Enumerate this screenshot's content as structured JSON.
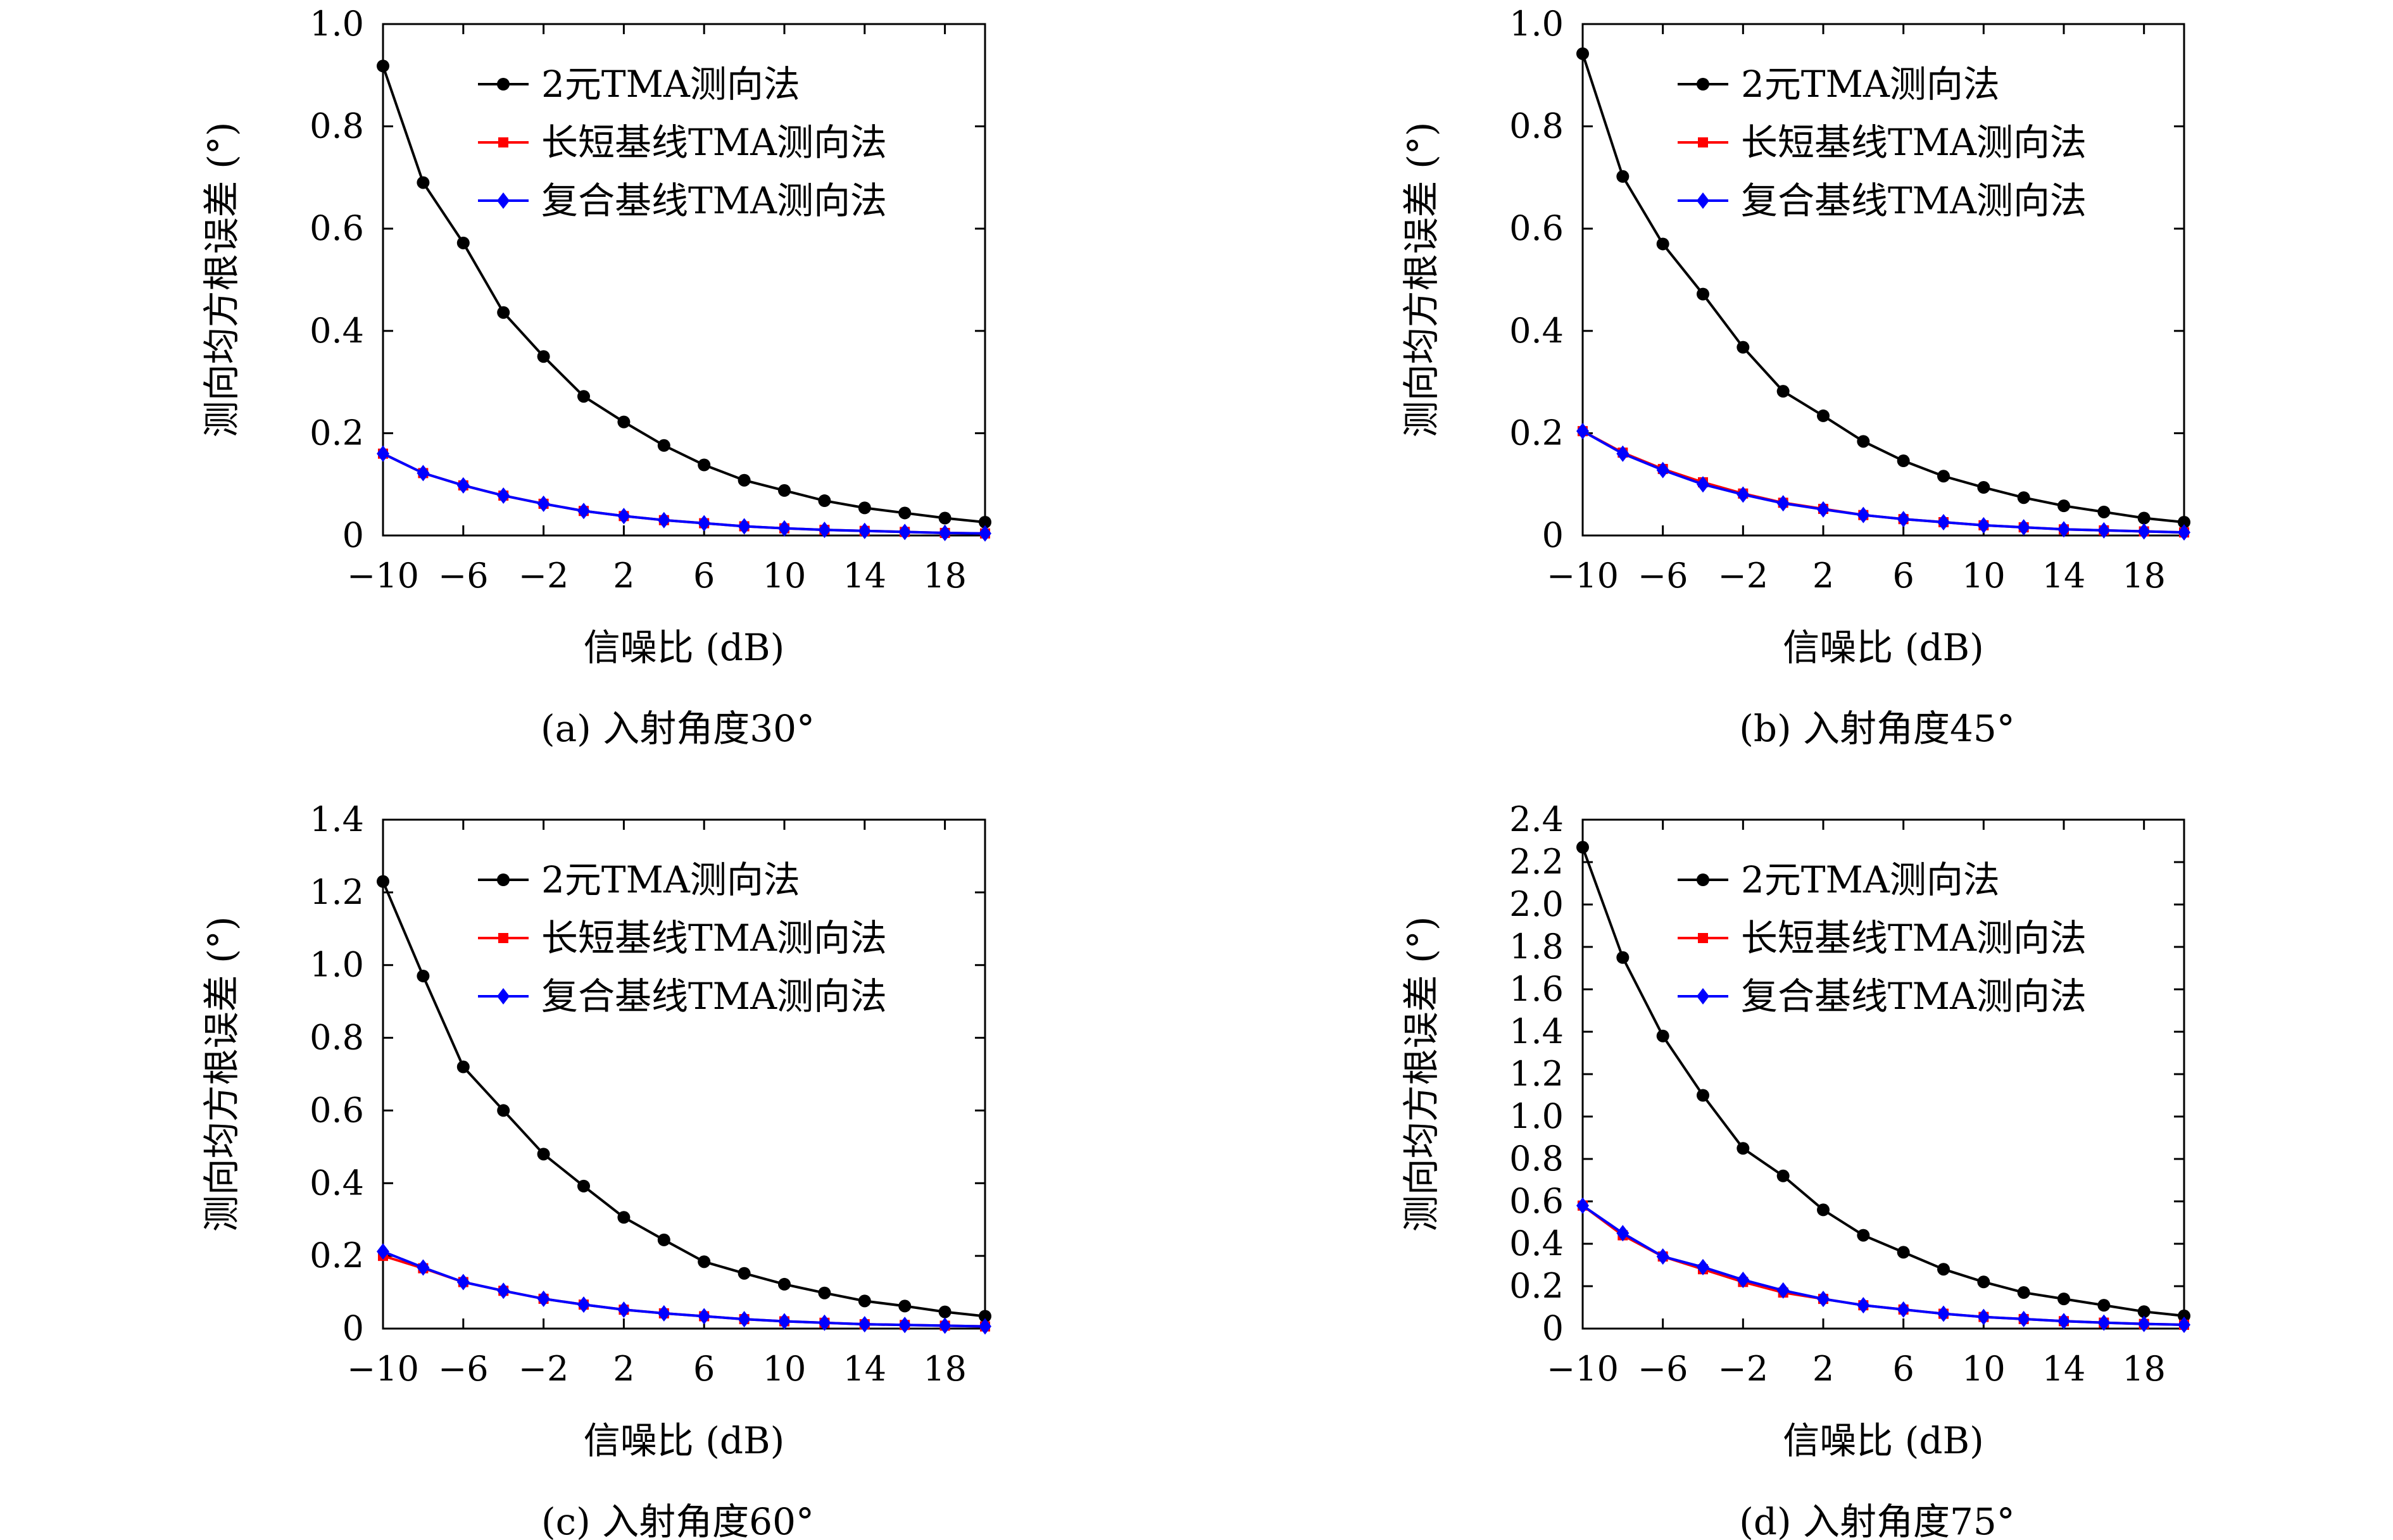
{
  "chart_data": [
    {
      "type": "line",
      "caption": "(a) 入射角度30°",
      "xlabel": "信噪比 (dB)",
      "ylabel": "测向均方根误差 (°)",
      "xlim": [
        -10,
        20
      ],
      "ylim": [
        0,
        1.0
      ],
      "xticks": [
        -10,
        -6,
        -2,
        2,
        6,
        10,
        14,
        18
      ],
      "xtick_labels": [
        "−10",
        "−6",
        "−2",
        "2",
        "6",
        "10",
        "14",
        "18"
      ],
      "yticks": [
        0,
        0.2,
        0.4,
        0.6,
        0.8,
        1.0
      ],
      "ytick_labels": [
        "0",
        "0.2",
        "0.4",
        "0.6",
        "0.8",
        "1.0"
      ],
      "legend_position": "top-right",
      "x": [
        -10,
        -8,
        -6,
        -4,
        -2,
        0,
        2,
        4,
        6,
        8,
        10,
        12,
        14,
        16,
        18,
        20
      ],
      "series": [
        {
          "name": "2元TMA测向法",
          "color": "#000000",
          "marker": "circle",
          "values": [
            0.918,
            0.69,
            0.572,
            0.436,
            0.35,
            0.272,
            0.222,
            0.176,
            0.138,
            0.108,
            0.088,
            0.068,
            0.054,
            0.044,
            0.034,
            0.026
          ]
        },
        {
          "name": "长短基线TMA测向法",
          "color": "#ff0000",
          "marker": "square",
          "values": [
            0.16,
            0.122,
            0.098,
            0.078,
            0.062,
            0.048,
            0.038,
            0.03,
            0.024,
            0.018,
            0.014,
            0.011,
            0.009,
            0.007,
            0.005,
            0.004
          ]
        },
        {
          "name": "复合基线TMA测向法",
          "color": "#0000ff",
          "marker": "diamond",
          "values": [
            0.16,
            0.122,
            0.098,
            0.078,
            0.062,
            0.048,
            0.038,
            0.03,
            0.024,
            0.018,
            0.014,
            0.011,
            0.009,
            0.007,
            0.005,
            0.004
          ]
        }
      ]
    },
    {
      "type": "line",
      "caption": "(b) 入射角度45°",
      "xlabel": "信噪比 (dB)",
      "ylabel": "测向均方根误差 (°)",
      "xlim": [
        -10,
        20
      ],
      "ylim": [
        0,
        1.0
      ],
      "xticks": [
        -10,
        -6,
        -2,
        2,
        6,
        10,
        14,
        18
      ],
      "xtick_labels": [
        "−10",
        "−6",
        "−2",
        "2",
        "6",
        "10",
        "14",
        "18"
      ],
      "yticks": [
        0,
        0.2,
        0.4,
        0.6,
        0.8,
        1.0
      ],
      "ytick_labels": [
        "0",
        "0.2",
        "0.4",
        "0.6",
        "0.8",
        "1.0"
      ],
      "legend_position": "top-right",
      "x": [
        -10,
        -8,
        -6,
        -4,
        -2,
        0,
        2,
        4,
        6,
        8,
        10,
        12,
        14,
        16,
        18,
        20
      ],
      "series": [
        {
          "name": "2元TMA测向法",
          "color": "#000000",
          "marker": "circle",
          "values": [
            0.942,
            0.702,
            0.57,
            0.472,
            0.368,
            0.282,
            0.234,
            0.184,
            0.146,
            0.116,
            0.094,
            0.074,
            0.058,
            0.046,
            0.034,
            0.026
          ]
        },
        {
          "name": "长短基线TMA测向法",
          "color": "#ff0000",
          "marker": "square",
          "values": [
            0.204,
            0.162,
            0.13,
            0.104,
            0.082,
            0.064,
            0.052,
            0.04,
            0.032,
            0.026,
            0.02,
            0.016,
            0.012,
            0.01,
            0.008,
            0.006
          ]
        },
        {
          "name": "复合基线TMA测向法",
          "color": "#0000ff",
          "marker": "diamond",
          "values": [
            0.204,
            0.16,
            0.128,
            0.1,
            0.08,
            0.063,
            0.051,
            0.04,
            0.032,
            0.026,
            0.02,
            0.016,
            0.012,
            0.01,
            0.008,
            0.006
          ]
        }
      ]
    },
    {
      "type": "line",
      "caption": "(c) 入射角度60°",
      "xlabel": "信噪比 (dB)",
      "ylabel": "测向均方根误差 (°)",
      "xlim": [
        -10,
        20
      ],
      "ylim": [
        0,
        1.4
      ],
      "xticks": [
        -10,
        -6,
        -2,
        2,
        6,
        10,
        14,
        18
      ],
      "xtick_labels": [
        "−10",
        "−6",
        "−2",
        "2",
        "6",
        "10",
        "14",
        "18"
      ],
      "yticks": [
        0,
        0.2,
        0.4,
        0.6,
        0.8,
        1.0,
        1.2,
        1.4
      ],
      "ytick_labels": [
        "0",
        "0.2",
        "0.4",
        "0.6",
        "0.8",
        "1.0",
        "1.2",
        "1.4"
      ],
      "legend_position": "top-right",
      "x": [
        -10,
        -8,
        -6,
        -4,
        -2,
        0,
        2,
        4,
        6,
        8,
        10,
        12,
        14,
        16,
        18,
        20
      ],
      "series": [
        {
          "name": "2元TMA测向法",
          "color": "#000000",
          "marker": "circle",
          "values": [
            1.23,
            0.97,
            0.72,
            0.6,
            0.48,
            0.392,
            0.306,
            0.244,
            0.184,
            0.152,
            0.122,
            0.098,
            0.076,
            0.062,
            0.046,
            0.034
          ]
        },
        {
          "name": "长短基线TMA测向法",
          "color": "#ff0000",
          "marker": "square",
          "values": [
            0.2,
            0.166,
            0.128,
            0.104,
            0.082,
            0.066,
            0.052,
            0.042,
            0.034,
            0.026,
            0.02,
            0.016,
            0.012,
            0.01,
            0.008,
            0.006
          ]
        },
        {
          "name": "复合基线TMA测向法",
          "color": "#0000ff",
          "marker": "diamond",
          "values": [
            0.212,
            0.168,
            0.128,
            0.104,
            0.082,
            0.066,
            0.052,
            0.042,
            0.034,
            0.026,
            0.02,
            0.016,
            0.012,
            0.01,
            0.008,
            0.006
          ]
        }
      ]
    },
    {
      "type": "line",
      "caption": "(d) 入射角度75°",
      "xlabel": "信噪比 (dB)",
      "ylabel": "测向均方根误差 (°)",
      "xlim": [
        -10,
        20
      ],
      "ylim": [
        0,
        2.4
      ],
      "xticks": [
        -10,
        -6,
        -2,
        2,
        6,
        10,
        14,
        18
      ],
      "xtick_labels": [
        "−10",
        "−6",
        "−2",
        "2",
        "6",
        "10",
        "14",
        "18"
      ],
      "yticks": [
        0,
        0.2,
        0.4,
        0.6,
        0.8,
        1.0,
        1.2,
        1.4,
        1.6,
        1.8,
        2.0,
        2.2,
        2.4
      ],
      "ytick_labels": [
        "0",
        "0.2",
        "0.4",
        "0.6",
        "0.8",
        "1.0",
        "1.2",
        "1.4",
        "1.6",
        "1.8",
        "2.0",
        "2.2",
        "2.4"
      ],
      "legend_position": "top-right",
      "x": [
        -10,
        -8,
        -6,
        -4,
        -2,
        0,
        2,
        4,
        6,
        8,
        10,
        12,
        14,
        16,
        18,
        20
      ],
      "series": [
        {
          "name": "2元TMA测向法",
          "color": "#000000",
          "marker": "circle",
          "values": [
            2.27,
            1.75,
            1.38,
            1.1,
            0.85,
            0.72,
            0.56,
            0.44,
            0.36,
            0.28,
            0.22,
            0.17,
            0.14,
            0.11,
            0.08,
            0.06
          ]
        },
        {
          "name": "长短基线TMA测向法",
          "color": "#ff0000",
          "marker": "square",
          "values": [
            0.58,
            0.44,
            0.34,
            0.28,
            0.22,
            0.17,
            0.14,
            0.11,
            0.09,
            0.07,
            0.055,
            0.045,
            0.035,
            0.028,
            0.022,
            0.018
          ]
        },
        {
          "name": "复合基线TMA测向法",
          "color": "#0000ff",
          "marker": "diamond",
          "values": [
            0.58,
            0.45,
            0.34,
            0.29,
            0.23,
            0.18,
            0.14,
            0.11,
            0.09,
            0.07,
            0.055,
            0.045,
            0.035,
            0.028,
            0.022,
            0.018
          ]
        }
      ]
    }
  ]
}
